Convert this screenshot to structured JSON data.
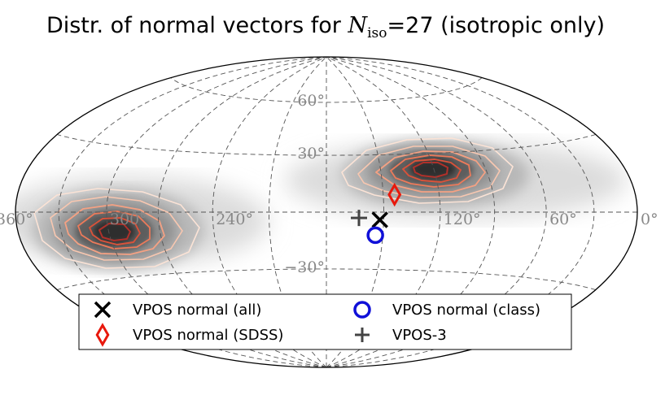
{
  "chart_data": {
    "type": "scatter",
    "projection": "hammer-aitoff",
    "title": {
      "prefix": "Distr. of normal vectors for ",
      "symbol": "N",
      "subscript": "iso",
      "equals_value": "=27",
      "suffix": " (isotropic only)"
    },
    "longitude_ticks": [
      {
        "value": 360,
        "label": "360°"
      },
      {
        "value": 300,
        "label": "300°"
      },
      {
        "value": 240,
        "label": "240°"
      },
      {
        "value": 120,
        "label": "120°"
      },
      {
        "value": 60,
        "label": "60°"
      },
      {
        "value": 0,
        "label": "0°"
      }
    ],
    "latitude_ticks": [
      {
        "value": 60,
        "label": "60°"
      },
      {
        "value": 30,
        "label": "30°"
      },
      {
        "value": -30,
        "label": "−30°"
      }
    ],
    "grid": true,
    "legend_position": "bottom-center",
    "density": [
      {
        "name": "cluster-north",
        "lon": 118,
        "lat": 17
      },
      {
        "name": "cluster-south",
        "lon": 298,
        "lat": -17
      }
    ],
    "markers": [
      {
        "name": "VPOS normal (all)",
        "marker": "x",
        "color": "#000000",
        "lon": 152,
        "lat": -4
      },
      {
        "name": "VPOS normal (SDSS)",
        "marker": "diamond",
        "color": "#e8180c",
        "lon": 144,
        "lat": 9
      },
      {
        "name": "VPOS normal (class)",
        "marker": "circle",
        "color": "#1010d8",
        "lon": 154,
        "lat": -12
      },
      {
        "name": "VPOS-3",
        "marker": "plus",
        "color": "#444444",
        "lon": 163,
        "lat": -3
      }
    ],
    "legend": [
      {
        "label": "VPOS normal (all)",
        "marker": "x"
      },
      {
        "label": "VPOS normal (class)",
        "marker": "circle"
      },
      {
        "label": "VPOS normal (SDSS)",
        "marker": "diamond"
      },
      {
        "label": "VPOS-3",
        "marker": "plus"
      }
    ]
  }
}
